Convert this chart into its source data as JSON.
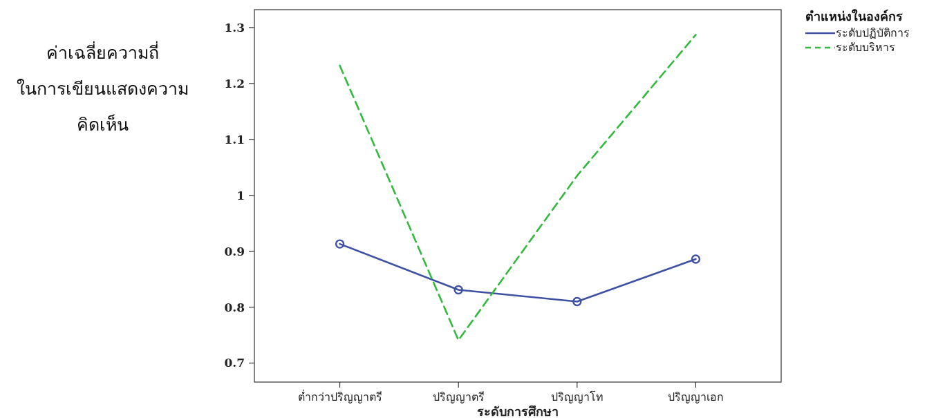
{
  "chart_data": {
    "type": "line",
    "ylabel": "ค่าเฉลี่ยความถี่\nในการเขียนแสดงความ\nคิดเห็น",
    "xlabel": "ระดับการศึกษา",
    "legend_title": "ตำแหน่งในองค์กร",
    "legend": "top right",
    "grid": false,
    "categories": [
      "ต่ำกว่าปริญญาตรี",
      "ปริญญาตรี",
      "ปริญญาโท",
      "ปริญญาเอก"
    ],
    "ylim": [
      0.666,
      1.332
    ],
    "yticks": [
      0.7,
      0.8,
      0.9,
      1,
      1.1,
      1.2,
      1.3
    ],
    "series": [
      {
        "name": "ระดับปฏิบัติการ",
        "color": "#3f51a3",
        "values": [
          0.913,
          0.831,
          0.81,
          0.886
        ],
        "marker": "circle",
        "line_style": "solid"
      },
      {
        "name": "ระดับบริหาร",
        "color": "#33b93f",
        "values": [
          1.232,
          0.741,
          1.035,
          1.287
        ],
        "marker": "none",
        "line_style": "dashed"
      }
    ]
  }
}
